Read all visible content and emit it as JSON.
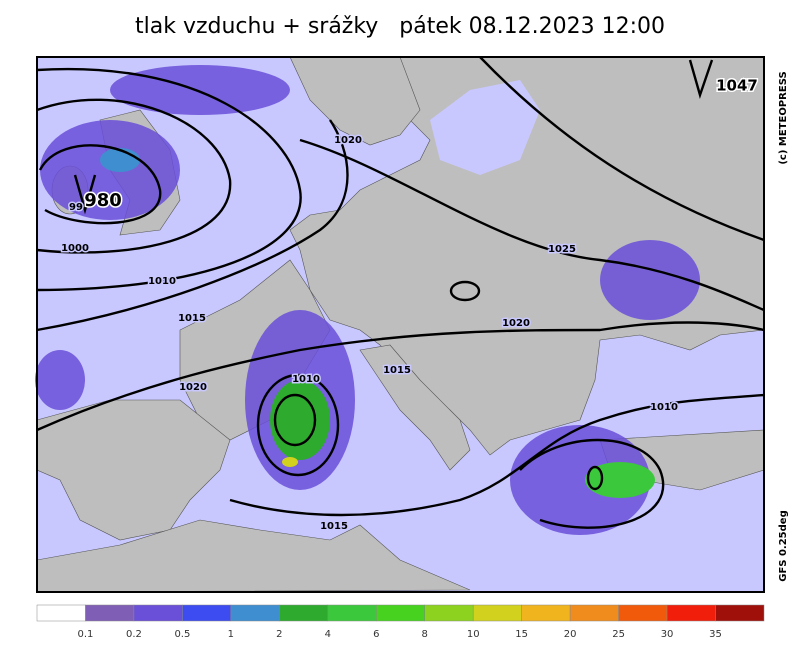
{
  "header": {
    "title": "tlak vzduchu + srážky   pátek 08.12.2023 12:00"
  },
  "map": {
    "pressure_centers": [
      {
        "label": "980"
      },
      {
        "label": "1047"
      }
    ],
    "isobar_labels": [
      "99",
      "1000",
      "1010",
      "1015",
      "1020",
      "1020",
      "1010",
      "1015",
      "1025",
      "1020",
      "1010",
      "1015"
    ]
  },
  "credits": [
    "(c) METEOPRESS",
    "GFS 0.25deg"
  ],
  "colorbar": {
    "colors": [
      "#ffffff",
      "#7f5fb5",
      "#6a4fd8",
      "#3c4cf0",
      "#3f8fd0",
      "#2eaa2e",
      "#3cc83c",
      "#46d21e",
      "#8cd21e",
      "#d2d21e",
      "#f0b41e",
      "#f08c1e",
      "#f05a0a",
      "#f01e0a",
      "#a0100a"
    ],
    "labels": [
      "0.1",
      "0.2",
      "0.5",
      "1",
      "2",
      "4",
      "6",
      "8",
      "10",
      "15",
      "20",
      "25",
      "30",
      "35"
    ]
  }
}
